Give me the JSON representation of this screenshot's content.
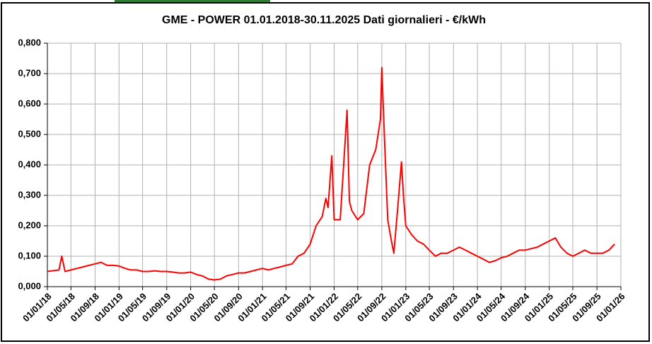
{
  "chart_data": {
    "type": "line",
    "title": "GME - POWER 01.01.2018-30.11.2025 Dati giornalieri - €/kWh",
    "x": [
      "2018-01-01",
      "2018-03-01",
      "2018-03-15",
      "2018-04-01",
      "2018-05-01",
      "2018-06-01",
      "2018-07-01",
      "2018-08-01",
      "2018-09-01",
      "2018-10-01",
      "2018-11-01",
      "2018-12-01",
      "2019-01-01",
      "2019-02-01",
      "2019-03-01",
      "2019-04-01",
      "2019-05-01",
      "2019-06-01",
      "2019-07-01",
      "2019-08-01",
      "2019-09-01",
      "2019-10-01",
      "2019-11-01",
      "2019-12-01",
      "2020-01-01",
      "2020-02-01",
      "2020-03-01",
      "2020-04-01",
      "2020-05-01",
      "2020-06-01",
      "2020-07-01",
      "2020-08-01",
      "2020-09-01",
      "2020-10-01",
      "2020-11-01",
      "2020-12-01",
      "2021-01-01",
      "2021-02-01",
      "2021-03-01",
      "2021-04-01",
      "2021-05-01",
      "2021-06-01",
      "2021-07-01",
      "2021-08-01",
      "2021-09-01",
      "2021-10-01",
      "2021-11-01",
      "2021-11-20",
      "2021-12-01",
      "2021-12-20",
      "2022-01-01",
      "2022-02-01",
      "2022-03-08",
      "2022-03-20",
      "2022-04-01",
      "2022-05-01",
      "2022-06-01",
      "2022-07-01",
      "2022-08-01",
      "2022-08-25",
      "2022-09-01",
      "2022-09-15",
      "2022-10-01",
      "2022-10-20",
      "2022-11-01",
      "2022-11-20",
      "2022-12-10",
      "2022-12-20",
      "2023-01-01",
      "2023-02-01",
      "2023-03-01",
      "2023-04-01",
      "2023-05-01",
      "2023-06-01",
      "2023-07-01",
      "2023-08-01",
      "2023-09-01",
      "2023-10-01",
      "2023-11-01",
      "2023-12-01",
      "2024-01-01",
      "2024-02-01",
      "2024-03-01",
      "2024-04-01",
      "2024-05-01",
      "2024-06-01",
      "2024-07-01",
      "2024-08-01",
      "2024-09-01",
      "2024-10-01",
      "2024-11-01",
      "2024-12-01",
      "2025-01-01",
      "2025-02-01",
      "2025-03-01",
      "2025-04-01",
      "2025-05-01",
      "2025-06-01",
      "2025-07-01",
      "2025-08-01",
      "2025-09-01",
      "2025-10-01",
      "2025-11-01",
      "2025-11-30"
    ],
    "series": [
      {
        "color": "#ff0000",
        "values": [
          0.05,
          0.055,
          0.1,
          0.05,
          0.055,
          0.06,
          0.065,
          0.07,
          0.075,
          0.08,
          0.07,
          0.07,
          0.068,
          0.06,
          0.055,
          0.055,
          0.05,
          0.05,
          0.052,
          0.05,
          0.05,
          0.048,
          0.045,
          0.045,
          0.048,
          0.04,
          0.035,
          0.025,
          0.022,
          0.025,
          0.035,
          0.04,
          0.045,
          0.045,
          0.05,
          0.055,
          0.06,
          0.055,
          0.06,
          0.065,
          0.07,
          0.075,
          0.1,
          0.11,
          0.14,
          0.2,
          0.23,
          0.29,
          0.26,
          0.43,
          0.22,
          0.22,
          0.58,
          0.28,
          0.25,
          0.22,
          0.24,
          0.4,
          0.45,
          0.55,
          0.72,
          0.48,
          0.22,
          0.15,
          0.11,
          0.25,
          0.41,
          0.3,
          0.2,
          0.17,
          0.15,
          0.14,
          0.12,
          0.1,
          0.11,
          0.11,
          0.12,
          0.13,
          0.12,
          0.11,
          0.1,
          0.09,
          0.08,
          0.085,
          0.095,
          0.1,
          0.11,
          0.12,
          0.12,
          0.125,
          0.13,
          0.14,
          0.15,
          0.16,
          0.13,
          0.11,
          0.1,
          0.11,
          0.12,
          0.11,
          0.11,
          0.11,
          0.12,
          0.14
        ]
      }
    ],
    "xlim": [
      "2018-01-01",
      "2026-01-01"
    ],
    "xticks": [
      {
        "value": "2018-01-01",
        "label": "01/01/18"
      },
      {
        "value": "2018-05-01",
        "label": "01/05/18"
      },
      {
        "value": "2018-09-01",
        "label": "01/09/18"
      },
      {
        "value": "2019-01-01",
        "label": "01/01/19"
      },
      {
        "value": "2019-05-01",
        "label": "01/05/19"
      },
      {
        "value": "2019-09-01",
        "label": "01/09/19"
      },
      {
        "value": "2020-01-01",
        "label": "01/01/20"
      },
      {
        "value": "2020-05-01",
        "label": "01/05/20"
      },
      {
        "value": "2020-09-01",
        "label": "01/09/20"
      },
      {
        "value": "2021-01-01",
        "label": "01/01/21"
      },
      {
        "value": "2021-05-01",
        "label": "01/05/21"
      },
      {
        "value": "2021-09-01",
        "label": "01/09/21"
      },
      {
        "value": "2022-01-01",
        "label": "01/01/22"
      },
      {
        "value": "2022-05-01",
        "label": "01/05/22"
      },
      {
        "value": "2022-09-01",
        "label": "01/09/22"
      },
      {
        "value": "2023-01-01",
        "label": "01/01/23"
      },
      {
        "value": "2023-05-01",
        "label": "01/05/23"
      },
      {
        "value": "2023-09-01",
        "label": "01/09/23"
      },
      {
        "value": "2024-01-01",
        "label": "01/01/24"
      },
      {
        "value": "2024-05-01",
        "label": "01/05/24"
      },
      {
        "value": "2024-09-01",
        "label": "01/09/24"
      },
      {
        "value": "2025-01-01",
        "label": "01/01/25"
      },
      {
        "value": "2025-05-01",
        "label": "01/05/25"
      },
      {
        "value": "2025-09-01",
        "label": "01/09/25"
      },
      {
        "value": "2026-01-01",
        "label": "01/01/26"
      }
    ],
    "ylim": [
      0,
      0.8
    ],
    "yticks": [
      {
        "value": 0,
        "label": "0,000"
      },
      {
        "value": 0.1,
        "label": "0,100"
      },
      {
        "value": 0.2,
        "label": "0,200"
      },
      {
        "value": 0.3,
        "label": "0,300"
      },
      {
        "value": 0.4,
        "label": "0,400"
      },
      {
        "value": 0.5,
        "label": "0,500"
      },
      {
        "value": 0.6,
        "label": "0,600"
      },
      {
        "value": 0.7,
        "label": "0,700"
      },
      {
        "value": 0.8,
        "label": "0,800"
      }
    ],
    "grid": true
  }
}
